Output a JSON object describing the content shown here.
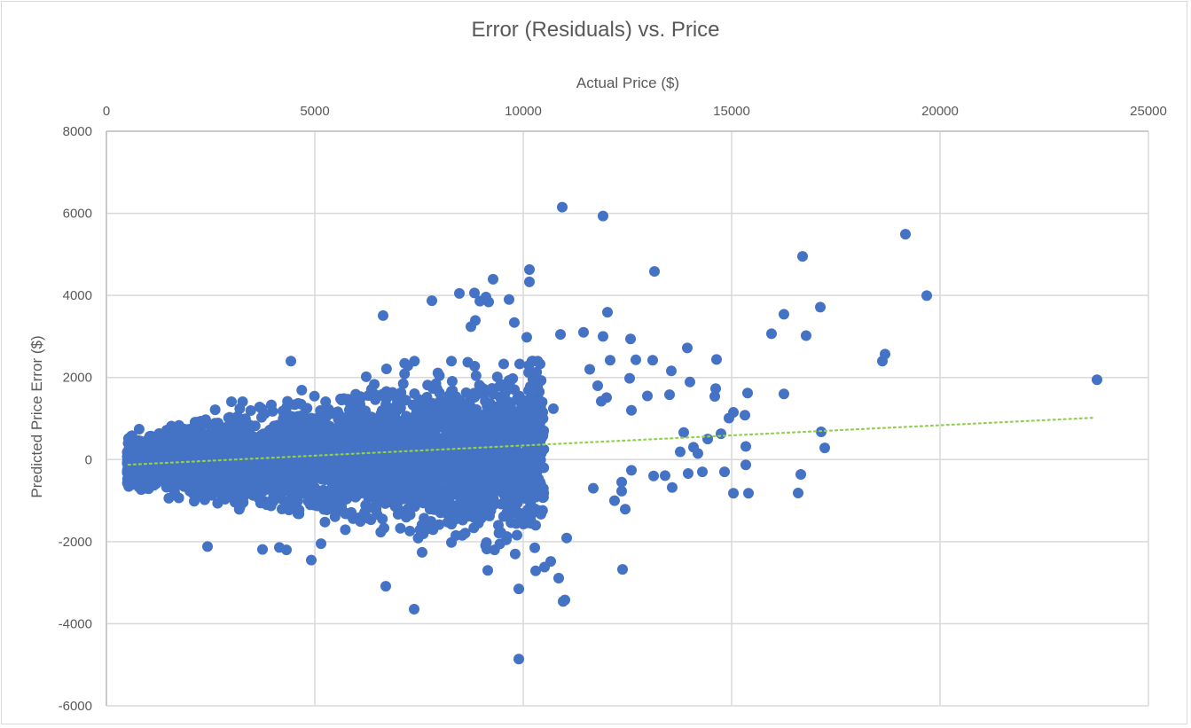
{
  "chart": {
    "title": "Error (Residuals) vs. Price",
    "x_axis_title": "Actual Price ($)",
    "y_axis_title": "Predicted Price Error ($)"
  },
  "colors": {
    "marker": "#4472c4",
    "trendline": "#92d050",
    "gridline": "#d9d9d9",
    "axis_text": "#595959",
    "frame": "#d9d9d9"
  },
  "chart_data": {
    "type": "scatter",
    "title": "Error (Residuals) vs. Price",
    "xlabel": "Actual Price ($)",
    "ylabel": "Predicted Price Error ($)",
    "xlim": [
      0,
      25000
    ],
    "ylim": [
      -6000,
      8000
    ],
    "x_ticks": [
      0,
      5000,
      10000,
      15000,
      20000,
      25000
    ],
    "y_ticks": [
      8000,
      6000,
      4000,
      2000,
      0,
      -2000,
      -4000,
      -6000
    ],
    "x_axis_position": "top",
    "grid": true,
    "legend": "none",
    "series": [
      {
        "name": "Residuals",
        "marker": "circle",
        "dense_cluster": {
          "description": "thousands of overlapping points forming a cone widening with price",
          "x_range": [
            500,
            10500
          ],
          "center_y_at_x_start": -60,
          "half_spread_at_x_start": 450,
          "half_spread_at_x_end": 1900,
          "count": 4200
        },
        "points": [
          [
            10936,
            6150
          ],
          [
            11915,
            5935
          ],
          [
            19170,
            5490
          ],
          [
            16702,
            4950
          ],
          [
            19681,
            3995
          ],
          [
            17128,
            3715
          ],
          [
            16255,
            3540
          ],
          [
            15957,
            3065
          ],
          [
            16787,
            3020
          ],
          [
            18681,
            2570
          ],
          [
            18617,
            2400
          ],
          [
            23766,
            1945
          ],
          [
            16255,
            1600
          ],
          [
            17234,
            285
          ],
          [
            17149,
            675
          ],
          [
            16660,
            -360
          ],
          [
            16596,
            -815
          ],
          [
            13149,
            4585
          ],
          [
            10149,
            4630
          ],
          [
            10149,
            4330
          ],
          [
            9277,
            4395
          ],
          [
            12021,
            3590
          ],
          [
            10894,
            3050
          ],
          [
            9894,
            -4860
          ],
          [
            7383,
            -3645
          ],
          [
            6702,
            -3085
          ],
          [
            9894,
            -3150
          ],
          [
            12383,
            -2675
          ],
          [
            10957,
            -3455
          ],
          [
            11000,
            -3420
          ],
          [
            6638,
            3510
          ],
          [
            7809,
            3870
          ],
          [
            8468,
            4050
          ],
          [
            8830,
            4060
          ],
          [
            9170,
            3840
          ],
          [
            8960,
            3860
          ],
          [
            9106,
            3960
          ],
          [
            8851,
            3390
          ],
          [
            8745,
            3240
          ],
          [
            9660,
            3900
          ],
          [
            9787,
            3340
          ],
          [
            11447,
            3100
          ],
          [
            11915,
            3000
          ],
          [
            12575,
            2940
          ],
          [
            13936,
            2720
          ],
          [
            9532,
            2330
          ],
          [
            4426,
            2400
          ],
          [
            10085,
            2980
          ],
          [
            10404,
            2330
          ],
          [
            11596,
            2200
          ],
          [
            12085,
            2420
          ],
          [
            12702,
            2430
          ],
          [
            13106,
            2420
          ],
          [
            13553,
            2160
          ],
          [
            14638,
            2440
          ],
          [
            15383,
            1620
          ],
          [
            14617,
            1730
          ],
          [
            14596,
            1540
          ],
          [
            12553,
            1980
          ],
          [
            12979,
            1550
          ],
          [
            13511,
            1580
          ],
          [
            14000,
            1890
          ],
          [
            11787,
            1800
          ],
          [
            12000,
            1510
          ],
          [
            15319,
            1080
          ],
          [
            15043,
            1150
          ],
          [
            14936,
            1010
          ],
          [
            14745,
            630
          ],
          [
            14426,
            500
          ],
          [
            13851,
            660
          ],
          [
            14085,
            300
          ],
          [
            14191,
            150
          ],
          [
            13766,
            190
          ],
          [
            15340,
            320
          ],
          [
            15340,
            -130
          ],
          [
            15404,
            -820
          ],
          [
            15043,
            -820
          ],
          [
            14830,
            -300
          ],
          [
            13957,
            -340
          ],
          [
            14298,
            -300
          ],
          [
            13574,
            -680
          ],
          [
            13404,
            -390
          ],
          [
            13128,
            -400
          ],
          [
            12596,
            -260
          ],
          [
            12191,
            -1000
          ],
          [
            12447,
            -1210
          ],
          [
            12362,
            -550
          ],
          [
            12362,
            -770
          ],
          [
            11681,
            -700
          ],
          [
            11043,
            -1910
          ],
          [
            10426,
            -1330
          ],
          [
            10298,
            -1600
          ],
          [
            10660,
            -2480
          ],
          [
            10511,
            -2620
          ],
          [
            10298,
            -2710
          ],
          [
            10277,
            -2150
          ],
          [
            10851,
            -2890
          ],
          [
            9851,
            -1840
          ],
          [
            9404,
            -1600
          ],
          [
            9127,
            -2180
          ],
          [
            9149,
            -2700
          ],
          [
            8277,
            -2020
          ],
          [
            8383,
            -1850
          ],
          [
            5149,
            -2050
          ],
          [
            4319,
            -2200
          ],
          [
            4149,
            -2140
          ],
          [
            3745,
            -2190
          ],
          [
            2426,
            -2120
          ],
          [
            4915,
            -2450
          ],
          [
            7574,
            -2260
          ],
          [
            3000,
            1410
          ],
          [
            9915,
            2330
          ],
          [
            10723,
            1240
          ],
          [
            11872,
            1420
          ],
          [
            12596,
            1200
          ]
        ]
      }
    ],
    "trendline": {
      "type": "linear",
      "style": "dotted",
      "x": [
        530,
        23720
      ],
      "y": [
        -125,
        1020
      ]
    }
  }
}
